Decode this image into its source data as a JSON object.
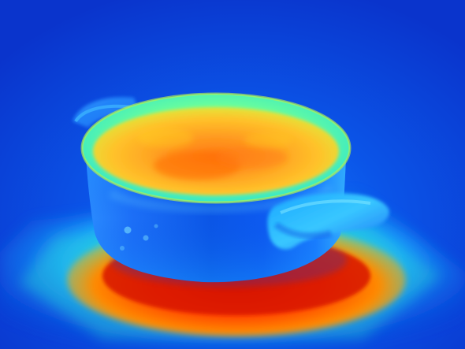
{
  "image": {
    "subject": "thermal-image-cooking-pot",
    "palette": {
      "background": "#0a3bd4",
      "cold": "#0b56e6",
      "cool": "#1aa6ff",
      "mid": "#2ee3d0",
      "warm": "#b7f24c",
      "hot": "#ffb21a",
      "hotter": "#ff6a00",
      "hottest": "#d81400"
    }
  }
}
